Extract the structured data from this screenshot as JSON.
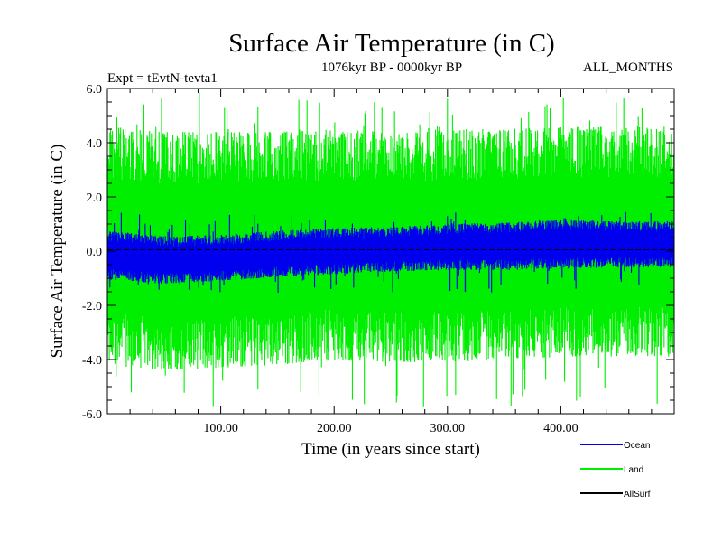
{
  "chart_data": {
    "type": "line",
    "title": "Surface Air Temperature (in C)",
    "subtitle_left": "Expt = tEvtN-tevta1",
    "subtitle_center": "1076kyr BP - 0000kyr BP",
    "subtitle_right": "ALL_MONTHS",
    "xlabel": "Time (in years since start)",
    "ylabel": "Surface Air Temperature (in C)",
    "xlim": [
      0,
      500
    ],
    "ylim": [
      -6,
      6
    ],
    "x_ticks": [
      100,
      200,
      300,
      400
    ],
    "x_tick_labels": [
      "100.00",
      "200.00",
      "300.00",
      "400.00"
    ],
    "y_ticks": [
      -6,
      -4,
      -2,
      0,
      2,
      4,
      6
    ],
    "y_tick_labels": [
      "-6.0",
      "-4.0",
      "-2.0",
      "0.0",
      "2.0",
      "4.0",
      "6.0"
    ],
    "series": [
      {
        "name": "Land",
        "color": "#00ee00",
        "anchor_x": [
          0,
          50,
          100,
          150,
          200,
          250,
          300,
          350,
          400,
          450,
          500
        ],
        "upper_envelope": [
          4.6,
          4.4,
          4.4,
          4.4,
          4.5,
          4.4,
          4.5,
          4.5,
          4.6,
          4.6,
          4.6
        ],
        "lower_envelope": [
          -4.2,
          -4.4,
          -4.3,
          -4.2,
          -4.0,
          -4.1,
          -4.1,
          -4.0,
          -3.9,
          -3.9,
          -3.9
        ],
        "peak_max": 5.9,
        "peak_min": -5.8
      },
      {
        "name": "Ocean",
        "color": "#0000ee",
        "anchor_x": [
          0,
          50,
          100,
          150,
          200,
          250,
          300,
          350,
          400,
          450,
          500
        ],
        "upper_envelope": [
          0.75,
          0.55,
          0.6,
          0.75,
          0.85,
          0.9,
          1.0,
          1.05,
          1.15,
          1.1,
          1.1
        ],
        "lower_envelope": [
          -1.05,
          -1.2,
          -1.1,
          -0.95,
          -0.85,
          -0.75,
          -0.7,
          -0.7,
          -0.65,
          -0.6,
          -0.6
        ],
        "peak_max": 1.45,
        "peak_min": -1.55
      },
      {
        "name": "AllSurf",
        "color": "#000000",
        "anchor_x": [
          0,
          500
        ],
        "values": [
          0.05,
          0.05
        ]
      }
    ],
    "legend": [
      "Ocean",
      "Land",
      "AllSurf"
    ],
    "legend_position": "bottom-right",
    "grid": false
  }
}
